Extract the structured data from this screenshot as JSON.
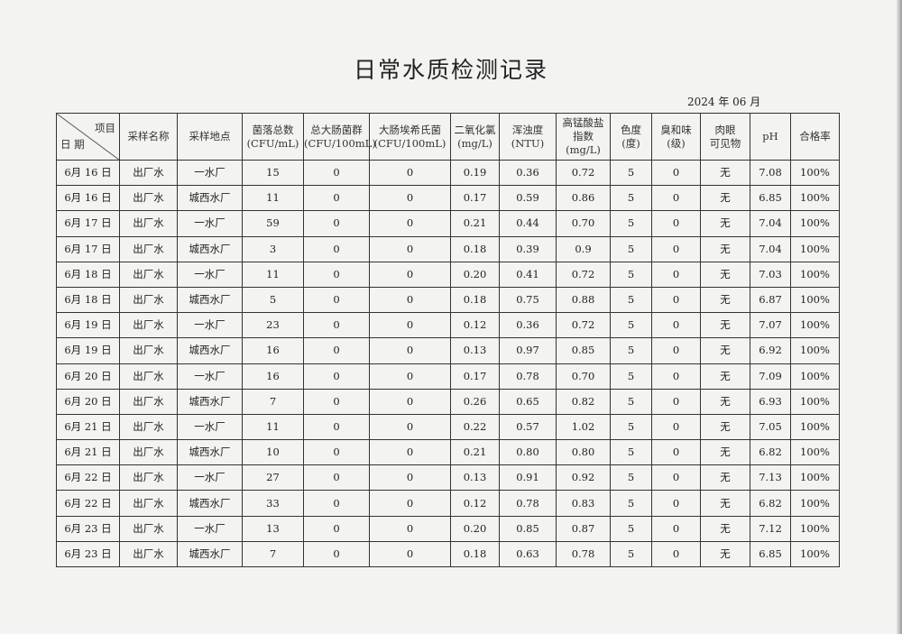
{
  "title": "日常水质检测记录",
  "date_label": "2024 年 06 月",
  "table": {
    "corner": {
      "top": "项目",
      "bottom": "日 期"
    },
    "headers": [
      {
        "line1": "采样名称",
        "line2": "",
        "line3": ""
      },
      {
        "line1": "采样地点",
        "line2": "",
        "line3": ""
      },
      {
        "line1": "菌落总数",
        "line2": "(CFU/mL)",
        "line3": ""
      },
      {
        "line1": "总大肠菌群",
        "line2": "(CFU/100mL)",
        "line3": ""
      },
      {
        "line1": "大肠埃希氏菌",
        "line2": "(CFU/100mL)",
        "line3": ""
      },
      {
        "line1": "二氧化氯",
        "line2": "(mg/L)",
        "line3": ""
      },
      {
        "line1": "浑浊度",
        "line2": "(NTU)",
        "line3": ""
      },
      {
        "line1": "高锰酸盐",
        "line2": "指数",
        "line3": "(mg/L)"
      },
      {
        "line1": "色度",
        "line2": "(度)",
        "line3": ""
      },
      {
        "line1": "臭和味",
        "line2": "(级)",
        "line3": ""
      },
      {
        "line1": "肉眼",
        "line2": "可见物",
        "line3": ""
      },
      {
        "line1": "pH",
        "line2": "",
        "line3": ""
      },
      {
        "line1": "合格率",
        "line2": "",
        "line3": ""
      }
    ],
    "rows": [
      [
        "6月 16 日",
        "出厂水",
        "一水厂",
        "15",
        "0",
        "0",
        "0.19",
        "0.36",
        "0.72",
        "5",
        "0",
        "无",
        "7.08",
        "100%"
      ],
      [
        "6月 16 日",
        "出厂水",
        "城西水厂",
        "11",
        "0",
        "0",
        "0.17",
        "0.59",
        "0.86",
        "5",
        "0",
        "无",
        "6.85",
        "100%"
      ],
      [
        "6月 17 日",
        "出厂水",
        "一水厂",
        "59",
        "0",
        "0",
        "0.21",
        "0.44",
        "0.70",
        "5",
        "0",
        "无",
        "7.04",
        "100%"
      ],
      [
        "6月 17 日",
        "出厂水",
        "城西水厂",
        "3",
        "0",
        "0",
        "0.18",
        "0.39",
        "0.9",
        "5",
        "0",
        "无",
        "7.04",
        "100%"
      ],
      [
        "6月 18 日",
        "出厂水",
        "一水厂",
        "11",
        "0",
        "0",
        "0.20",
        "0.41",
        "0.72",
        "5",
        "0",
        "无",
        "7.03",
        "100%"
      ],
      [
        "6月 18 日",
        "出厂水",
        "城西水厂",
        "5",
        "0",
        "0",
        "0.18",
        "0.75",
        "0.88",
        "5",
        "0",
        "无",
        "6.87",
        "100%"
      ],
      [
        "6月 19 日",
        "出厂水",
        "一水厂",
        "23",
        "0",
        "0",
        "0.12",
        "0.36",
        "0.72",
        "5",
        "0",
        "无",
        "7.07",
        "100%"
      ],
      [
        "6月 19 日",
        "出厂水",
        "城西水厂",
        "16",
        "0",
        "0",
        "0.13",
        "0.97",
        "0.85",
        "5",
        "0",
        "无",
        "6.92",
        "100%"
      ],
      [
        "6月 20 日",
        "出厂水",
        "一水厂",
        "16",
        "0",
        "0",
        "0.17",
        "0.78",
        "0.70",
        "5",
        "0",
        "无",
        "7.09",
        "100%"
      ],
      [
        "6月 20 日",
        "出厂水",
        "城西水厂",
        "7",
        "0",
        "0",
        "0.26",
        "0.65",
        "0.82",
        "5",
        "0",
        "无",
        "6.93",
        "100%"
      ],
      [
        "6月 21 日",
        "出厂水",
        "一水厂",
        "11",
        "0",
        "0",
        "0.22",
        "0.57",
        "1.02",
        "5",
        "0",
        "无",
        "7.05",
        "100%"
      ],
      [
        "6月 21 日",
        "出厂水",
        "城西水厂",
        "10",
        "0",
        "0",
        "0.21",
        "0.80",
        "0.80",
        "5",
        "0",
        "无",
        "6.82",
        "100%"
      ],
      [
        "6月 22 日",
        "出厂水",
        "一水厂",
        "27",
        "0",
        "0",
        "0.13",
        "0.91",
        "0.92",
        "5",
        "0",
        "无",
        "7.13",
        "100%"
      ],
      [
        "6月 22 日",
        "出厂水",
        "城西水厂",
        "33",
        "0",
        "0",
        "0.12",
        "0.78",
        "0.83",
        "5",
        "0",
        "无",
        "6.82",
        "100%"
      ],
      [
        "6月 23 日",
        "出厂水",
        "一水厂",
        "13",
        "0",
        "0",
        "0.20",
        "0.85",
        "0.87",
        "5",
        "0",
        "无",
        "7.12",
        "100%"
      ],
      [
        "6月 23 日",
        "出厂水",
        "城西水厂",
        "7",
        "0",
        "0",
        "0.18",
        "0.63",
        "0.78",
        "5",
        "0",
        "无",
        "6.85",
        "100%"
      ]
    ]
  }
}
